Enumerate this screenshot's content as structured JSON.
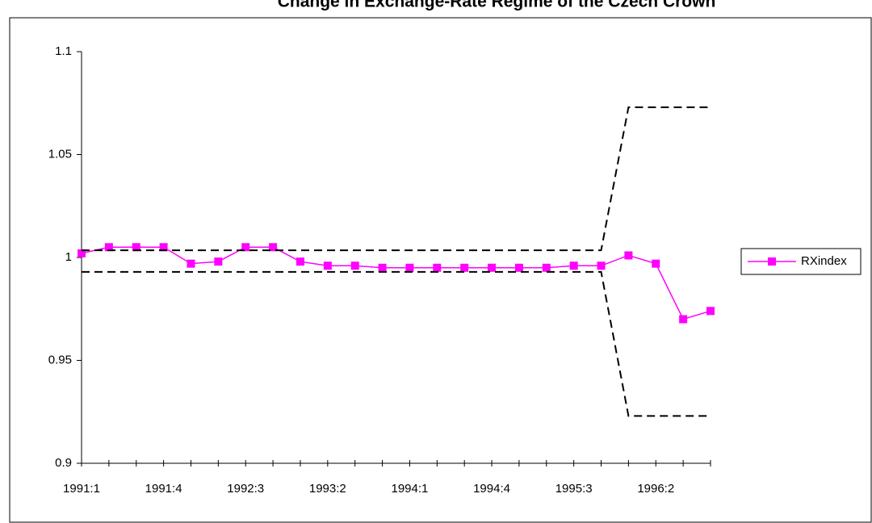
{
  "chart_data": {
    "type": "line",
    "title": "Change in Exchange-Rate  Regime of the Czech Crown",
    "categories": [
      "1991:1",
      null,
      null,
      "1991:4",
      null,
      null,
      "1992:3",
      null,
      null,
      "1993:2",
      null,
      null,
      "1994:1",
      null,
      null,
      "1994:4",
      null,
      null,
      "1995:3",
      null,
      null,
      "1996:2",
      null,
      null
    ],
    "series": [
      {
        "name": "RXindex",
        "color": "#ff00ff",
        "values": [
          1.002,
          1.005,
          1.005,
          1.005,
          0.997,
          0.998,
          1.005,
          1.005,
          0.998,
          0.996,
          0.996,
          0.995,
          0.995,
          0.995,
          0.995,
          0.995,
          0.995,
          0.995,
          0.996,
          0.996,
          1.001,
          0.997,
          0.97,
          0.974
        ]
      },
      {
        "color": "#000000",
        "dashed": true,
        "values": [
          1.0035,
          1.0035,
          1.0035,
          1.0035,
          1.0035,
          1.0035,
          1.0035,
          1.0035,
          1.0035,
          1.0035,
          1.0035,
          1.0035,
          1.0035,
          1.0035,
          1.0035,
          1.0035,
          1.0035,
          1.0035,
          1.0035,
          1.0035,
          1.073,
          1.073,
          1.073,
          1.073
        ]
      },
      {
        "color": "#000000",
        "dashed": true,
        "values": [
          0.993,
          0.993,
          0.993,
          0.993,
          0.993,
          0.993,
          0.993,
          0.993,
          0.993,
          0.993,
          0.993,
          0.993,
          0.993,
          0.993,
          0.993,
          0.993,
          0.993,
          0.993,
          0.993,
          0.993,
          0.923,
          0.923,
          0.923,
          0.923
        ]
      }
    ],
    "ylim": [
      0.9,
      1.1
    ],
    "yticks": [
      0.9,
      0.95,
      1,
      1.05,
      1.1
    ],
    "grid": false,
    "legend": "right"
  }
}
